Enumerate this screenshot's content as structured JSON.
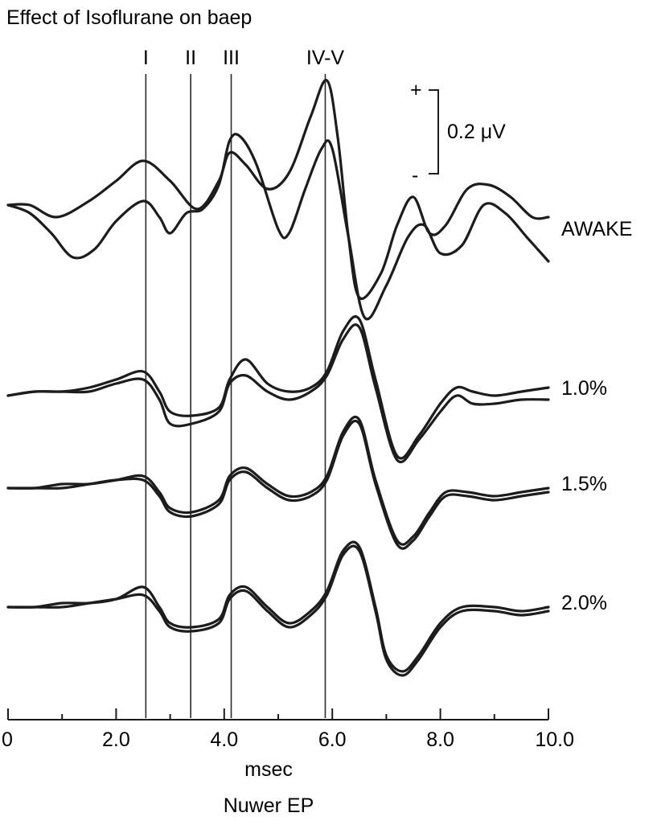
{
  "chart_data": {
    "type": "line",
    "title": "Effect of Isoflurane on baep",
    "xlabel": "msec",
    "source": "Nuwer EP",
    "xlim": [
      0,
      10
    ],
    "x_ticks": [
      {
        "value": 0,
        "label": "0"
      },
      {
        "value": 2,
        "label": "2.0"
      },
      {
        "value": 4,
        "label": "4.0"
      },
      {
        "value": 6,
        "label": "6.0"
      },
      {
        "value": 8,
        "label": "8.0"
      },
      {
        "value": 10,
        "label": "10.0"
      }
    ],
    "minor_ticks": [
      1,
      3,
      5,
      7,
      9
    ],
    "peak_markers": [
      {
        "label": "I",
        "x": 2.55
      },
      {
        "label": "II",
        "x": 3.38
      },
      {
        "label": "III",
        "x": 4.13
      },
      {
        "label": "IV-V",
        "x": 5.87
      }
    ],
    "scale_bar": {
      "plus": "+",
      "minus": "-",
      "label": "0.2 μV",
      "microvolts": 0.2
    },
    "conditions": [
      {
        "name": "AWAKE",
        "traces": [
          {
            "points": [
              [
                0,
                0
              ],
              [
                0.4,
                -0.02
              ],
              [
                0.8,
                -0.07
              ],
              [
                1.2,
                -0.13
              ],
              [
                1.6,
                -0.11
              ],
              [
                2.0,
                -0.04
              ],
              [
                2.5,
                0.01
              ],
              [
                2.8,
                -0.03
              ],
              [
                3.0,
                -0.07
              ],
              [
                3.3,
                -0.02
              ],
              [
                3.6,
                -0.01
              ],
              [
                3.9,
                0.05
              ],
              [
                4.1,
                0.16
              ],
              [
                4.3,
                0.17
              ],
              [
                4.6,
                0.1
              ],
              [
                5.0,
                -0.06
              ],
              [
                5.2,
                -0.07
              ],
              [
                5.5,
                0.04
              ],
              [
                5.8,
                0.14
              ],
              [
                6.0,
                0.14
              ],
              [
                6.3,
                -0.08
              ],
              [
                6.6,
                -0.28
              ],
              [
                7.0,
                -0.2
              ],
              [
                7.4,
                -0.08
              ],
              [
                7.7,
                -0.05
              ],
              [
                8.0,
                -0.12
              ],
              [
                8.4,
                -0.1
              ],
              [
                8.8,
                0.0
              ],
              [
                9.2,
                -0.02
              ],
              [
                9.6,
                -0.08
              ],
              [
                10.0,
                -0.14
              ]
            ]
          },
          {
            "points": [
              [
                0,
                0
              ],
              [
                0.4,
                0.0
              ],
              [
                0.9,
                -0.03
              ],
              [
                1.5,
                0.01
              ],
              [
                2.0,
                0.06
              ],
              [
                2.5,
                0.11
              ],
              [
                3.0,
                0.06
              ],
              [
                3.5,
                -0.01
              ],
              [
                3.9,
                0.06
              ],
              [
                4.1,
                0.13
              ],
              [
                4.4,
                0.1
              ],
              [
                4.8,
                0.04
              ],
              [
                5.2,
                0.08
              ],
              [
                5.6,
                0.22
              ],
              [
                5.9,
                0.31
              ],
              [
                6.1,
                0.17
              ],
              [
                6.3,
                -0.08
              ],
              [
                6.5,
                -0.23
              ],
              [
                6.9,
                -0.17
              ],
              [
                7.2,
                -0.05
              ],
              [
                7.5,
                0.02
              ],
              [
                7.8,
                -0.07
              ],
              [
                8.1,
                -0.05
              ],
              [
                8.5,
                0.04
              ],
              [
                8.9,
                0.05
              ],
              [
                9.3,
                0.02
              ],
              [
                9.7,
                -0.03
              ],
              [
                10.0,
                -0.03
              ]
            ]
          }
        ]
      },
      {
        "name": "1.0%",
        "traces": [
          {
            "points": [
              [
                0,
                0
              ],
              [
                0.5,
                0.01
              ],
              [
                1.0,
                0.01
              ],
              [
                1.5,
                0.02
              ],
              [
                2.0,
                0.04
              ],
              [
                2.5,
                0.06
              ],
              [
                2.8,
                0.01
              ],
              [
                3.0,
                -0.04
              ],
              [
                3.4,
                -0.05
              ],
              [
                3.9,
                -0.03
              ],
              [
                4.1,
                0.04
              ],
              [
                4.4,
                0.09
              ],
              [
                4.8,
                0.03
              ],
              [
                5.2,
                0.01
              ],
              [
                5.6,
                0.02
              ],
              [
                5.9,
                0.06
              ],
              [
                6.2,
                0.16
              ],
              [
                6.5,
                0.19
              ],
              [
                6.8,
                0.04
              ],
              [
                7.2,
                -0.15
              ],
              [
                7.6,
                -0.1
              ],
              [
                8.0,
                -0.02
              ],
              [
                8.3,
                0.02
              ],
              [
                8.6,
                0.01
              ],
              [
                9.0,
                0.0
              ],
              [
                9.5,
                0.01
              ],
              [
                10.0,
                0.02
              ]
            ]
          },
          {
            "points": [
              [
                0,
                0
              ],
              [
                0.5,
                0.01
              ],
              [
                1.0,
                0.01
              ],
              [
                1.5,
                0.01
              ],
              [
                2.0,
                0.03
              ],
              [
                2.5,
                0.04
              ],
              [
                2.8,
                -0.01
              ],
              [
                3.0,
                -0.07
              ],
              [
                3.4,
                -0.07
              ],
              [
                3.9,
                -0.04
              ],
              [
                4.1,
                0.03
              ],
              [
                4.4,
                0.05
              ],
              [
                4.8,
                0.01
              ],
              [
                5.2,
                -0.01
              ],
              [
                5.6,
                0.01
              ],
              [
                5.9,
                0.05
              ],
              [
                6.2,
                0.14
              ],
              [
                6.5,
                0.17
              ],
              [
                6.8,
                0.02
              ],
              [
                7.2,
                -0.16
              ],
              [
                7.6,
                -0.11
              ],
              [
                8.0,
                -0.04
              ],
              [
                8.3,
                0.0
              ],
              [
                8.6,
                -0.02
              ],
              [
                9.0,
                -0.02
              ],
              [
                9.5,
                -0.01
              ],
              [
                10.0,
                -0.01
              ]
            ]
          }
        ]
      },
      {
        "name": "1.5%",
        "traces": [
          {
            "points": [
              [
                0,
                0
              ],
              [
                0.5,
                0.0
              ],
              [
                1.0,
                0.01
              ],
              [
                1.5,
                0.01
              ],
              [
                2.0,
                0.02
              ],
              [
                2.5,
                0.03
              ],
              [
                2.8,
                -0.01
              ],
              [
                3.0,
                -0.05
              ],
              [
                3.4,
                -0.06
              ],
              [
                3.9,
                -0.03
              ],
              [
                4.1,
                0.03
              ],
              [
                4.4,
                0.05
              ],
              [
                4.8,
                0.01
              ],
              [
                5.2,
                -0.02
              ],
              [
                5.6,
                -0.01
              ],
              [
                5.9,
                0.03
              ],
              [
                6.2,
                0.14
              ],
              [
                6.5,
                0.17
              ],
              [
                6.8,
                0.02
              ],
              [
                7.2,
                -0.13
              ],
              [
                7.5,
                -0.12
              ],
              [
                7.8,
                -0.06
              ],
              [
                8.1,
                -0.01
              ],
              [
                8.5,
                -0.01
              ],
              [
                9.0,
                -0.02
              ],
              [
                9.5,
                -0.01
              ],
              [
                10.0,
                0.0
              ]
            ]
          },
          {
            "points": [
              [
                0,
                0
              ],
              [
                0.5,
                0.0
              ],
              [
                1.0,
                0.0
              ],
              [
                1.5,
                0.01
              ],
              [
                2.0,
                0.02
              ],
              [
                2.5,
                0.02
              ],
              [
                2.8,
                -0.02
              ],
              [
                3.0,
                -0.06
              ],
              [
                3.4,
                -0.07
              ],
              [
                3.9,
                -0.04
              ],
              [
                4.1,
                0.02
              ],
              [
                4.4,
                0.04
              ],
              [
                4.8,
                0.0
              ],
              [
                5.2,
                -0.03
              ],
              [
                5.6,
                -0.02
              ],
              [
                5.9,
                0.02
              ],
              [
                6.2,
                0.13
              ],
              [
                6.5,
                0.16
              ],
              [
                6.8,
                0.01
              ],
              [
                7.2,
                -0.14
              ],
              [
                7.5,
                -0.13
              ],
              [
                7.8,
                -0.07
              ],
              [
                8.1,
                -0.02
              ],
              [
                8.5,
                -0.02
              ],
              [
                9.0,
                -0.03
              ],
              [
                9.5,
                -0.02
              ],
              [
                10.0,
                -0.01
              ]
            ]
          }
        ]
      },
      {
        "name": "2.0%",
        "traces": [
          {
            "points": [
              [
                0,
                0
              ],
              [
                0.5,
                0.0
              ],
              [
                1.0,
                0.01
              ],
              [
                1.5,
                0.01
              ],
              [
                2.0,
                0.02
              ],
              [
                2.5,
                0.05
              ],
              [
                2.8,
                0.0
              ],
              [
                3.0,
                -0.04
              ],
              [
                3.4,
                -0.05
              ],
              [
                3.9,
                -0.03
              ],
              [
                4.1,
                0.03
              ],
              [
                4.4,
                0.05
              ],
              [
                4.8,
                0.0
              ],
              [
                5.2,
                -0.04
              ],
              [
                5.6,
                -0.01
              ],
              [
                5.9,
                0.04
              ],
              [
                6.2,
                0.14
              ],
              [
                6.5,
                0.15
              ],
              [
                6.8,
                0.0
              ],
              [
                7.0,
                -0.12
              ],
              [
                7.3,
                -0.16
              ],
              [
                7.6,
                -0.12
              ],
              [
                8.0,
                -0.04
              ],
              [
                8.4,
                0.0
              ],
              [
                9.0,
                0.0
              ],
              [
                9.5,
                -0.01
              ],
              [
                10.0,
                0.0
              ]
            ]
          },
          {
            "points": [
              [
                0,
                0
              ],
              [
                0.5,
                0.0
              ],
              [
                1.0,
                0.0
              ],
              [
                1.5,
                0.01
              ],
              [
                2.0,
                0.02
              ],
              [
                2.5,
                0.03
              ],
              [
                2.8,
                -0.01
              ],
              [
                3.0,
                -0.05
              ],
              [
                3.4,
                -0.06
              ],
              [
                3.9,
                -0.04
              ],
              [
                4.1,
                0.02
              ],
              [
                4.4,
                0.04
              ],
              [
                4.8,
                -0.01
              ],
              [
                5.2,
                -0.05
              ],
              [
                5.6,
                -0.02
              ],
              [
                5.9,
                0.03
              ],
              [
                6.2,
                0.13
              ],
              [
                6.5,
                0.14
              ],
              [
                6.8,
                -0.01
              ],
              [
                7.0,
                -0.13
              ],
              [
                7.3,
                -0.17
              ],
              [
                7.6,
                -0.13
              ],
              [
                8.0,
                -0.05
              ],
              [
                8.4,
                -0.01
              ],
              [
                9.0,
                -0.01
              ],
              [
                9.5,
                -0.02
              ],
              [
                10.0,
                -0.01
              ]
            ]
          }
        ]
      }
    ]
  }
}
